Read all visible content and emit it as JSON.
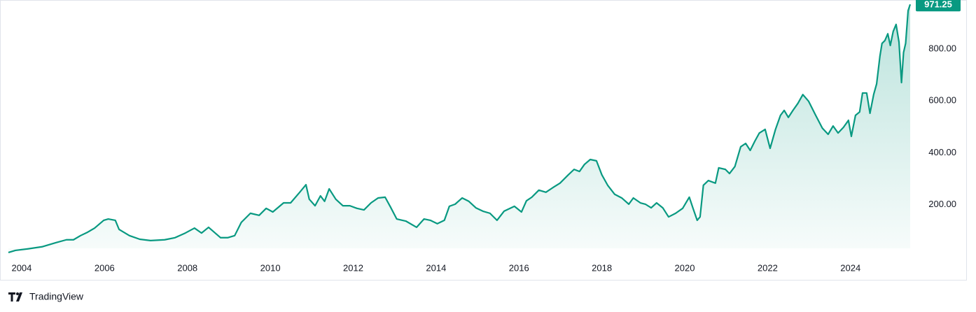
{
  "chart_data": {
    "type": "area",
    "x": [
      2003.68,
      2003.85,
      2004.15,
      2004.49,
      2004.83,
      2005.08,
      2005.25,
      2005.42,
      2005.59,
      2005.76,
      2005.98,
      2006.09,
      2006.26,
      2006.35,
      2006.6,
      2006.85,
      2007.11,
      2007.45,
      2007.7,
      2007.95,
      2008.17,
      2008.34,
      2008.51,
      2008.8,
      2008.97,
      2009.14,
      2009.3,
      2009.52,
      2009.73,
      2009.9,
      2010.06,
      2010.32,
      2010.49,
      2010.71,
      2010.86,
      2010.94,
      2011.08,
      2011.21,
      2011.31,
      2011.42,
      2011.58,
      2011.75,
      2011.92,
      2012.09,
      2012.26,
      2012.43,
      2012.6,
      2012.77,
      2012.9,
      2013.05,
      2013.27,
      2013.53,
      2013.71,
      2013.86,
      2014.03,
      2014.2,
      2014.32,
      2014.46,
      2014.63,
      2014.79,
      2014.96,
      2015.13,
      2015.3,
      2015.47,
      2015.64,
      2015.89,
      2016.06,
      2016.18,
      2016.31,
      2016.48,
      2016.65,
      2016.82,
      2016.99,
      2017.19,
      2017.33,
      2017.46,
      2017.58,
      2017.72,
      2017.87,
      2018,
      2018.14,
      2018.31,
      2018.48,
      2018.65,
      2018.76,
      2018.93,
      2019.05,
      2019.19,
      2019.32,
      2019.47,
      2019.61,
      2019.78,
      2019.95,
      2020.11,
      2020.2,
      2020.3,
      2020.37,
      2020.45,
      2020.57,
      2020.74,
      2020.82,
      2020.98,
      2021.08,
      2021.21,
      2021.35,
      2021.47,
      2021.58,
      2021.69,
      2021.8,
      2021.94,
      2022.06,
      2022.19,
      2022.31,
      2022.4,
      2022.5,
      2022.61,
      2022.73,
      2022.85,
      2022.99,
      2023.16,
      2023.32,
      2023.46,
      2023.58,
      2023.7,
      2023.83,
      2023.95,
      2024.02,
      2024.12,
      2024.22,
      2024.29,
      2024.39,
      2024.47,
      2024.56,
      2024.63,
      2024.71,
      2024.76,
      2024.83,
      2024.9,
      2024.96,
      2025.03,
      2025.1,
      2025.17,
      2025.23,
      2025.28,
      2025.33,
      2025.39,
      2025.44
    ],
    "series": [
      {
        "color": "#089981",
        "values": [
          16,
          24,
          30,
          38,
          54,
          65,
          65,
          81,
          94,
          110,
          140,
          145,
          140,
          105,
          81,
          67,
          62,
          65,
          73,
          91,
          110,
          91,
          113,
          73,
          73,
          81,
          132,
          167,
          159,
          186,
          172,
          207,
          207,
          248,
          277,
          221,
          196,
          234,
          213,
          261,
          221,
          196,
          196,
          186,
          180,
          207,
          226,
          229,
          191,
          145,
          137,
          113,
          145,
          140,
          127,
          140,
          194,
          202,
          226,
          213,
          188,
          175,
          167,
          140,
          175,
          194,
          172,
          215,
          229,
          256,
          248,
          266,
          283,
          315,
          336,
          328,
          355,
          374,
          369,
          315,
          275,
          240,
          226,
          202,
          226,
          207,
          202,
          188,
          207,
          188,
          153,
          167,
          186,
          229,
          186,
          140,
          153,
          275,
          293,
          283,
          342,
          336,
          320,
          347,
          423,
          436,
          409,
          444,
          476,
          490,
          417,
          490,
          544,
          563,
          536,
          563,
          590,
          624,
          598,
          544,
          495,
          471,
          503,
          476,
          498,
          525,
          463,
          544,
          557,
          630,
          630,
          552,
          625,
          665,
          772,
          821,
          832,
          858,
          813,
          867,
          894,
          826,
          670,
          786,
          821,
          947,
          971.25
        ]
      }
    ],
    "xlim": [
      2003.68,
      2025.44
    ],
    "xticks": [
      2004,
      2006,
      2008,
      2010,
      2012,
      2014,
      2016,
      2018,
      2020,
      2022,
      2024
    ],
    "ylim": [
      32,
      980
    ],
    "yticks": [
      {
        "value": 200,
        "label": "200.00"
      },
      {
        "value": 400,
        "label": "400.00"
      },
      {
        "value": 600,
        "label": "600.00"
      },
      {
        "value": 800,
        "label": "800.00"
      }
    ],
    "grid": false
  },
  "brand": "TradingView"
}
